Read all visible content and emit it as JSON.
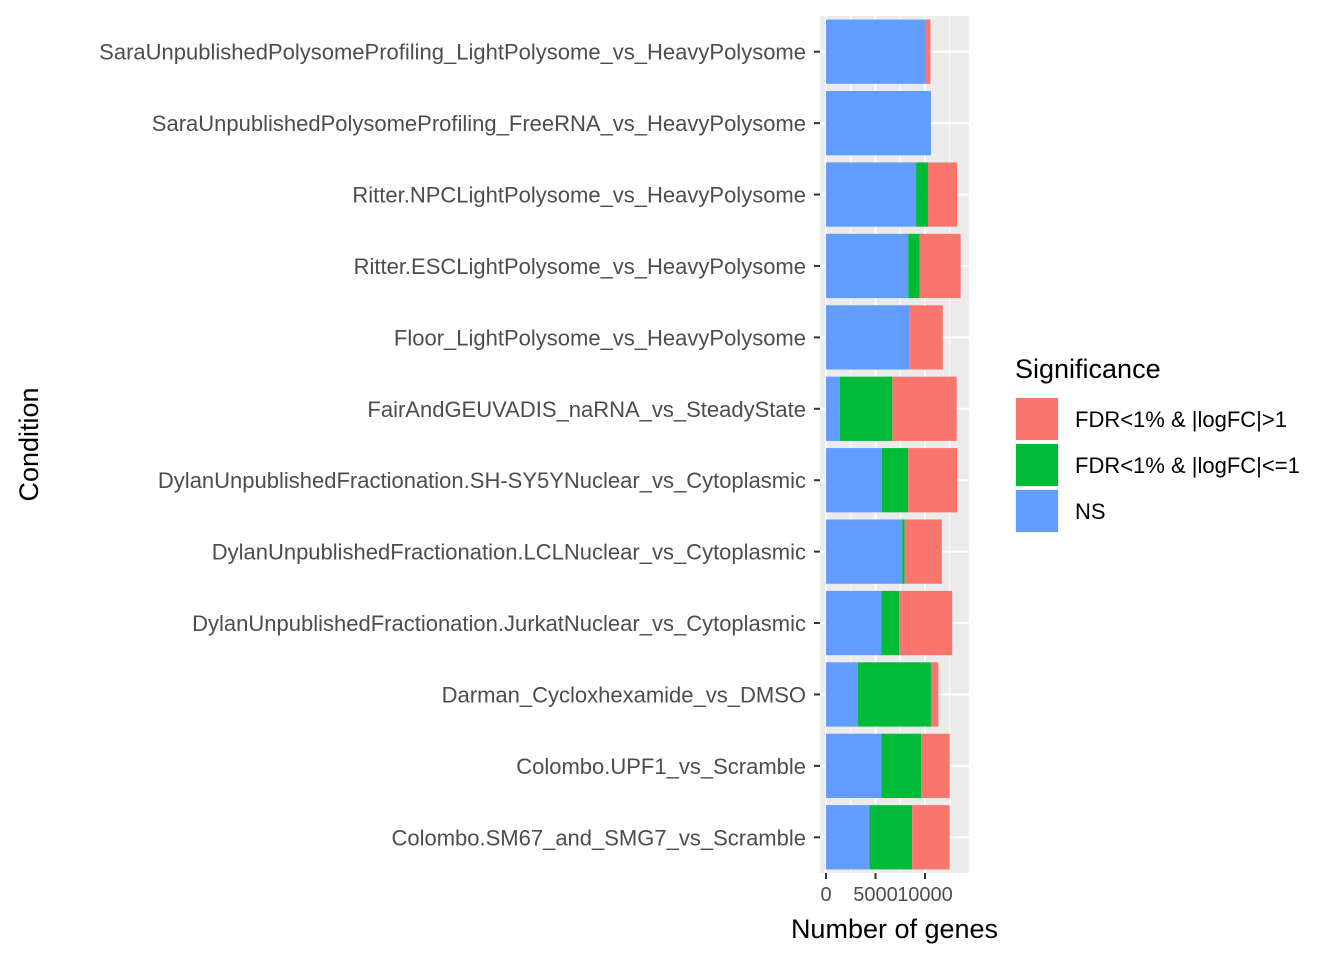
{
  "chart_data": {
    "type": "bar",
    "orientation": "horizontal",
    "stacked": true,
    "xlabel": "Number of genes",
    "ylabel": "Condition",
    "xlim": [
      0,
      14500
    ],
    "x_ticks": [
      0,
      5000,
      10000
    ],
    "x_tick_labels": [
      "0",
      "5000",
      "10000"
    ],
    "grid": true,
    "legend_position": "right",
    "categories": [
      "SaraUnpublishedPolysomeProfiling_LightPolysome_vs_HeavyPolysome",
      "SaraUnpublishedPolysomeProfiling_FreeRNA_vs_HeavyPolysome",
      "Ritter.NPCLightPolysome_vs_HeavyPolysome",
      "Ritter.ESCLightPolysome_vs_HeavyPolysome",
      "Floor_LightPolysome_vs_HeavyPolysome",
      "FairAndGEUVADIS_naRNA_vs_SteadyState",
      "DylanUnpublishedFractionation.SH-SY5YNuclear_vs_Cytoplasmic",
      "DylanUnpublishedFractionation.LCLNuclear_vs_Cytoplasmic",
      "DylanUnpublishedFractionation.JurkatNuclear_vs_Cytoplasmic",
      "Darman_Cycloxhexamide_vs_DMSO",
      "Colombo.UPF1_vs_Scramble",
      "Colombo.SM67_and_SMG7_vs_Scramble"
    ],
    "series": [
      {
        "name": "NS",
        "color": "#619CFF",
        "values": [
          10000,
          10600,
          9100,
          8300,
          8450,
          1400,
          5650,
          7700,
          5600,
          3200,
          5600,
          4400
        ]
      },
      {
        "name": "FDR<1% & |logFC|<=1",
        "color": "#00BA38",
        "values": [
          0,
          0,
          1200,
          1150,
          0,
          5300,
          2650,
          250,
          1800,
          7400,
          4000,
          4300
        ]
      },
      {
        "name": "FDR<1% & |logFC|>1",
        "color": "#F8766D",
        "values": [
          550,
          0,
          2950,
          4150,
          3350,
          6500,
          4950,
          3750,
          5350,
          750,
          2900,
          3800
        ]
      }
    ],
    "legend": {
      "title": "Significance",
      "entries": [
        {
          "label": "FDR<1% & |logFC|>1",
          "color": "#F8766D"
        },
        {
          "label": "FDR<1% & |logFC|<=1",
          "color": "#00BA38"
        },
        {
          "label": "NS",
          "color": "#619CFF"
        }
      ]
    },
    "panel_background": "#EBEBEB",
    "grid_color": "#FFFFFF"
  }
}
